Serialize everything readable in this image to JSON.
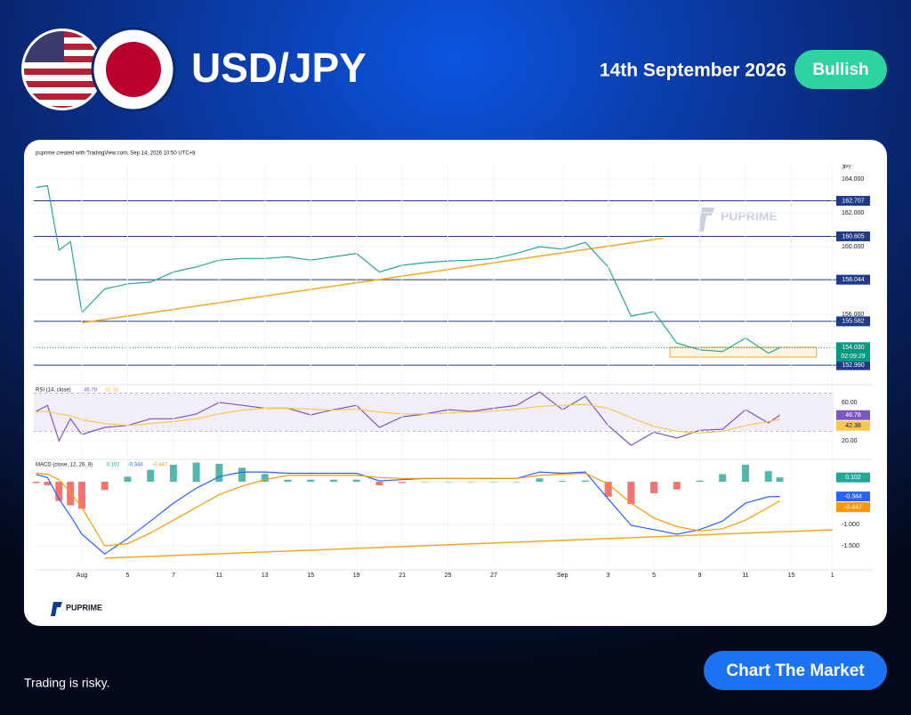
{
  "header": {
    "pair": "USD/JPY",
    "date": "14th September 2026",
    "bias": "Bullish"
  },
  "footer": {
    "disclaimer": "Trading is risky.",
    "cta": "Chart The Market"
  },
  "watermark": "PUPRIME",
  "brand": "PUPRIME",
  "chart_data": [
    {
      "type": "line",
      "title": "puprime created with TradingView.com, Sep 14, 2026 10:50 UTC+8",
      "y_label": "JPY",
      "x": [
        -2,
        -1.5,
        -1,
        -0.5,
        0,
        1,
        2,
        3,
        4,
        5,
        6,
        7,
        8,
        9,
        10,
        11,
        12,
        13,
        14,
        15,
        16,
        17,
        18,
        19,
        20,
        21,
        22,
        23,
        24,
        25,
        26,
        27,
        28,
        29,
        30,
        30.5
      ],
      "series": [
        {
          "color": "#26a69a",
          "values": [
            163.5,
            163.6,
            159.8,
            160.3,
            156.1,
            157.5,
            157.8,
            157.9,
            158.5,
            158.8,
            159.2,
            159.3,
            159.3,
            159.4,
            159.2,
            159.4,
            159.6,
            158.5,
            158.9,
            159.05,
            159.15,
            159.2,
            159.3,
            159.6,
            160.0,
            159.85,
            160.25,
            158.8,
            155.9,
            156.15,
            154.3,
            153.9,
            153.8,
            154.6,
            153.7,
            154.03
          ]
        }
      ],
      "xlim": [
        -2.1,
        32.85
      ],
      "ylim": [
        152.05,
        164.84
      ],
      "yticks": [
        {
          "value": 164,
          "label": "164.000"
        },
        {
          "value": 162,
          "label": "162.000"
        },
        {
          "value": 160,
          "label": "160.000"
        },
        {
          "value": 156,
          "label": "156.000"
        }
      ],
      "grid": true,
      "levels": [
        {
          "value": 162.707,
          "label": "162.707"
        },
        {
          "value": 160.605,
          "label": "160.605"
        },
        {
          "value": 158.044,
          "label": "158.044"
        },
        {
          "value": 155.582,
          "label": "155.582"
        },
        {
          "value": 152.99,
          "label": "152.990"
        }
      ],
      "level_color": "#1e3a8a",
      "last": {
        "value": 154.03,
        "label": "154.030",
        "countdown": "02:09:29",
        "color": "#089981"
      },
      "trendlines": [
        {
          "from": [
            0,
            155.5
          ],
          "to": [
            25.4,
            160.5
          ],
          "color": "#f5a623"
        }
      ],
      "zone": {
        "x": [
          25.7,
          32.1
        ],
        "y": [
          153.47,
          154.05
        ],
        "color": "#f5a623"
      }
    },
    {
      "type": "line",
      "title": "RSI (14, close)",
      "x": [
        -2,
        -1.5,
        -1,
        -0.5,
        0,
        1,
        2,
        3,
        4,
        5,
        6,
        7,
        8,
        9,
        10,
        11,
        12,
        13,
        14,
        15,
        16,
        17,
        18,
        19,
        20,
        21,
        22,
        23,
        24,
        25,
        26,
        27,
        28,
        29,
        30,
        30.5
      ],
      "series": [
        {
          "color": "#7e57c2",
          "values": [
            50.7,
            57,
            20,
            43,
            26.5,
            34,
            36,
            43,
            43,
            48,
            60,
            57,
            54,
            54,
            47,
            52.5,
            57,
            34,
            45,
            48,
            52.5,
            50.7,
            54,
            57,
            71,
            52.5,
            66.5,
            36,
            15.3,
            29,
            22.8,
            31,
            32,
            52.5,
            38.6,
            46.78
          ]
        },
        {
          "color": "#f9c74f",
          "values": [
            50,
            51,
            48,
            46,
            42,
            38,
            36,
            38,
            40,
            43,
            48,
            52,
            54,
            54,
            53,
            52,
            53,
            50,
            48,
            48,
            49,
            50,
            51,
            53,
            56,
            57,
            58,
            54,
            44,
            35,
            30,
            28,
            30,
            36,
            40,
            42.38
          ]
        }
      ],
      "legend_values": [
        46.78,
        42.38
      ],
      "band": [
        30,
        70
      ],
      "xlim": [
        -2.1,
        32.85
      ],
      "ylim": [
        4.2,
        74.9
      ],
      "yticks": [
        {
          "value": 60,
          "label": "60.00"
        },
        {
          "value": 20,
          "label": "20.00"
        }
      ],
      "grid": true
    },
    {
      "type": "macd",
      "title": "MACD (close, 12, 26, 9)",
      "x": [
        -2,
        -1.5,
        -1,
        -0.5,
        0,
        1,
        2,
        3,
        4,
        5,
        6,
        7,
        8,
        9,
        10,
        11,
        12,
        13,
        14,
        15,
        16,
        17,
        18,
        19,
        20,
        21,
        22,
        23,
        24,
        25,
        26,
        27,
        28,
        29,
        30,
        30.5
      ],
      "series": [
        {
          "kind": "histogram",
          "color": "#26a69a",
          "negative_color": "#ef5350",
          "values": [
            -0.03,
            -0.08,
            -0.45,
            -0.55,
            -0.63,
            -0.19,
            0.12,
            0.28,
            0.4,
            0.45,
            0.42,
            0.33,
            0.18,
            0.05,
            0.05,
            0.05,
            0.05,
            -0.08,
            -0.03,
            0,
            0,
            0,
            0,
            0,
            0.08,
            0.02,
            0.03,
            -0.35,
            -0.52,
            -0.27,
            -0.18,
            0.03,
            0.18,
            0.4,
            0.25,
            0.102
          ]
        },
        {
          "kind": "line",
          "color": "#2962ff",
          "values": [
            0.17,
            0.1,
            -0.4,
            -0.8,
            -1.23,
            -1.69,
            -1.33,
            -0.92,
            -0.5,
            -0.15,
            0.12,
            0.23,
            0.23,
            0.2,
            0.2,
            0.2,
            0.2,
            0.02,
            0.05,
            0.08,
            0.08,
            0.08,
            0.08,
            0.08,
            0.23,
            0.2,
            0.23,
            -0.4,
            -1.02,
            -1.12,
            -1.23,
            -1.12,
            -0.92,
            -0.5,
            -0.35,
            -0.344
          ]
        },
        {
          "kind": "line",
          "color": "#ff9800",
          "values": [
            0.2,
            0.18,
            0.05,
            -0.25,
            -0.6,
            -1.5,
            -1.45,
            -1.2,
            -0.9,
            -0.6,
            -0.3,
            -0.1,
            0.05,
            0.15,
            0.15,
            0.15,
            0.15,
            0.1,
            0.08,
            0.08,
            0.08,
            0.08,
            0.08,
            0.08,
            0.15,
            0.18,
            0.2,
            -0.05,
            -0.5,
            -0.85,
            -1.05,
            -1.15,
            -1.1,
            -0.9,
            -0.6,
            -0.447
          ]
        }
      ],
      "legend_values": [
        0.102,
        -0.344,
        -0.447
      ],
      "xlim": [
        -2.1,
        32.85
      ],
      "ylim": [
        -1.98,
        0.44
      ],
      "yticks": [
        {
          "value": -1,
          "label": "-1.000"
        },
        {
          "value": -1.5,
          "label": "-1.500"
        }
      ],
      "grid": true,
      "trendlines": [
        {
          "from": [
            1,
            -1.79
          ],
          "to": [
            32.8,
            -1.125
          ],
          "color": "#f5a623"
        }
      ],
      "xticks": [
        {
          "value": 0,
          "label": "Aug"
        },
        {
          "value": 2,
          "label": "5"
        },
        {
          "value": 4,
          "label": "7"
        },
        {
          "value": 6,
          "label": "11"
        },
        {
          "value": 8,
          "label": "13"
        },
        {
          "value": 10,
          "label": "15"
        },
        {
          "value": 12,
          "label": "19"
        },
        {
          "value": 14,
          "label": "21"
        },
        {
          "value": 16,
          "label": "25"
        },
        {
          "value": 18,
          "label": "27"
        },
        {
          "value": 21,
          "label": "Sep"
        },
        {
          "value": 23,
          "label": "3"
        },
        {
          "value": 25,
          "label": "5"
        },
        {
          "value": 27,
          "label": "9"
        },
        {
          "value": 29,
          "label": "11"
        },
        {
          "value": 31,
          "label": "15"
        },
        {
          "value": 32.8,
          "label": "1"
        }
      ]
    }
  ]
}
